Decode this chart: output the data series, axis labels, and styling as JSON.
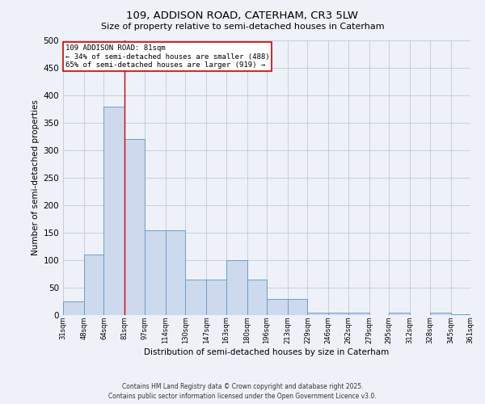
{
  "title_line1": "109, ADDISON ROAD, CATERHAM, CR3 5LW",
  "title_line2": "Size of property relative to semi-detached houses in Caterham",
  "xlabel": "Distribution of semi-detached houses by size in Caterham",
  "ylabel": "Number of semi-detached properties",
  "annotation_line1": "109 ADDISON ROAD: 81sqm",
  "annotation_line2": "← 34% of semi-detached houses are smaller (488)",
  "annotation_line3": "65% of semi-detached houses are larger (919) →",
  "footnote1": "Contains HM Land Registry data © Crown copyright and database right 2025.",
  "footnote2": "Contains public sector information licensed under the Open Government Licence v3.0.",
  "bar_left_edges": [
    31,
    48,
    64,
    81,
    97,
    114,
    130,
    147,
    163,
    180,
    196,
    213,
    229,
    246,
    262,
    279,
    295,
    312,
    328,
    345
  ],
  "bar_widths": [
    17,
    16,
    17,
    16,
    17,
    16,
    17,
    16,
    17,
    16,
    17,
    16,
    17,
    16,
    17,
    16,
    17,
    16,
    17,
    16
  ],
  "bar_heights": [
    25,
    110,
    380,
    320,
    155,
    155,
    65,
    65,
    100,
    65,
    30,
    30,
    5,
    5,
    5,
    0,
    5,
    0,
    5,
    2
  ],
  "tick_labels": [
    "31sqm",
    "48sqm",
    "64sqm",
    "81sqm",
    "97sqm",
    "114sqm",
    "130sqm",
    "147sqm",
    "163sqm",
    "180sqm",
    "196sqm",
    "213sqm",
    "229sqm",
    "246sqm",
    "262sqm",
    "279sqm",
    "295sqm",
    "312sqm",
    "328sqm",
    "345sqm",
    "361sqm"
  ],
  "bar_color": "#cdd9ed",
  "bar_edge_color": "#6b9ec8",
  "vline_color": "#cc0000",
  "vline_x": 81,
  "annotation_box_color": "#cc0000",
  "background_color": "#eef2f8",
  "plot_bg_color": "#eef2f8",
  "grid_color": "#c0c8d8",
  "ylim": [
    0,
    500
  ],
  "yticks": [
    0,
    50,
    100,
    150,
    200,
    250,
    300,
    350,
    400,
    450,
    500
  ]
}
